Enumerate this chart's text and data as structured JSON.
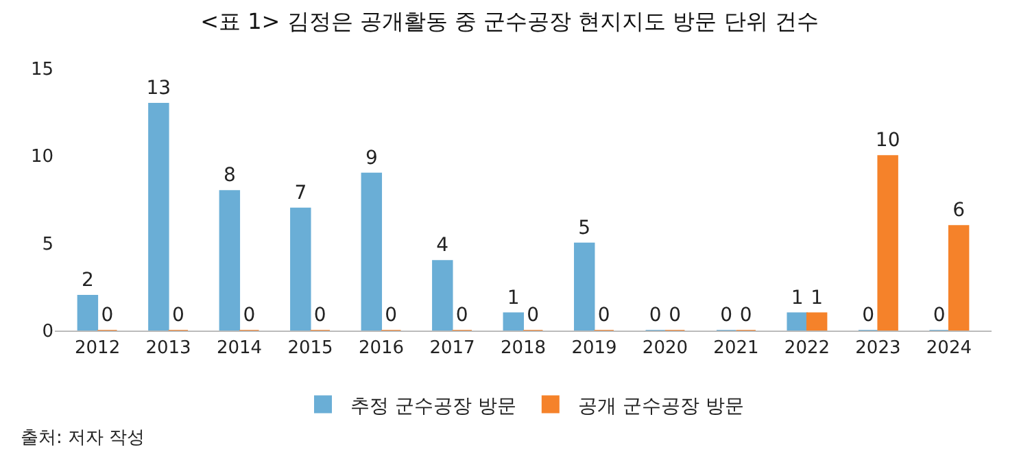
{
  "chart_data": {
    "type": "bar",
    "title": "<표 1> 김정은 공개활동 중 군수공장 현지지도 방문 단위 건수",
    "categories": [
      "2012",
      "2013",
      "2014",
      "2015",
      "2016",
      "2017",
      "2018",
      "2019",
      "2020",
      "2021",
      "2022",
      "2023",
      "2024"
    ],
    "series": [
      {
        "name": "추정 군수공장 방문",
        "color": "#6aaed6",
        "values": [
          2,
          13,
          8,
          7,
          9,
          4,
          1,
          5,
          0,
          0,
          1,
          0,
          0
        ]
      },
      {
        "name": "공개 군수공장 방문",
        "color": "#f5822a",
        "values": [
          0,
          0,
          0,
          0,
          0,
          0,
          0,
          0,
          0,
          0,
          1,
          10,
          6
        ]
      }
    ],
    "ylim": [
      0,
      15
    ],
    "yticks": [
      0,
      5,
      10,
      15
    ],
    "legend": "bottom",
    "data_labels": true,
    "annotations": [
      "출처: 저자 작성"
    ]
  }
}
